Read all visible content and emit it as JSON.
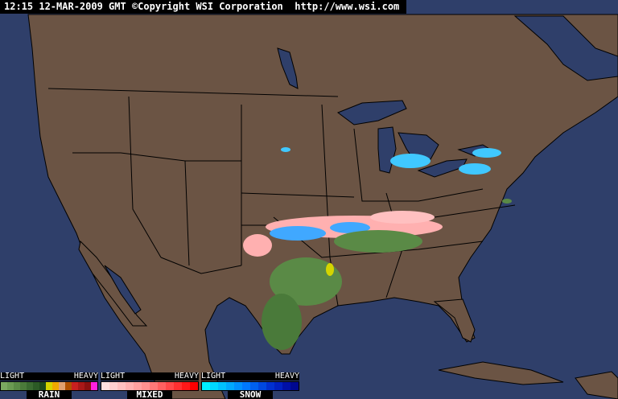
{
  "header": {
    "text": "12:15 12-MAR-2009 GMT ©Copyright WSI Corporation  http://www.wsi.com"
  },
  "colors": {
    "ocean": "#2f3f6a",
    "land": "#6b5444",
    "border": "#000000"
  },
  "legend": [
    {
      "name": "RAIN",
      "light": "LIGHT",
      "heavy": "HEAVY",
      "colors": [
        "#7aa860",
        "#6a9a52",
        "#5a8a46",
        "#4a7a3a",
        "#3a6a30",
        "#2c5a26",
        "#1f4a1c",
        "#d4d400",
        "#f0a800",
        "#e0a070",
        "#b05000",
        "#c82020",
        "#a81818",
        "#8c1010",
        "#ff20e0"
      ]
    },
    {
      "name": "MIXED",
      "light": "LIGHT",
      "heavy": "HEAVY",
      "colors": [
        "#ffe0e0",
        "#ffd0d0",
        "#ffc0c0",
        "#ffb0b0",
        "#ffa0a0",
        "#ff9090",
        "#ff7878",
        "#ff6060",
        "#ff4848",
        "#ff3030",
        "#ff1818",
        "#ff0000"
      ]
    },
    {
      "name": "SNOW",
      "light": "LIGHT",
      "heavy": "HEAVY",
      "colors": [
        "#00f0ff",
        "#00d8ff",
        "#00c0ff",
        "#00a8ff",
        "#0090ff",
        "#0078ff",
        "#0060f0",
        "#0048e0",
        "#0030d0",
        "#0020c0",
        "#0010a8",
        "#000890"
      ]
    }
  ]
}
